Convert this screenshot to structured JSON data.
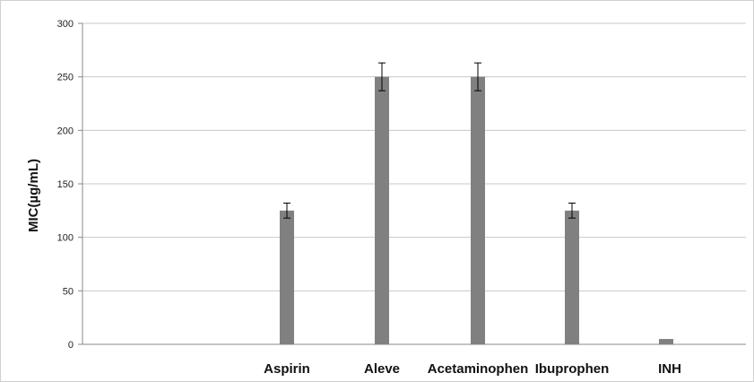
{
  "chart_data": {
    "type": "bar",
    "title": "",
    "xlabel": "",
    "ylabel": "MIC(µg/mL)",
    "ylim": [
      0,
      300
    ],
    "yticks": [
      0,
      50,
      100,
      150,
      200,
      250,
      300
    ],
    "grid": true,
    "categories": [
      "Aspirin",
      "Aleve",
      "Acetaminophen",
      "Ibuprophen",
      "INH"
    ],
    "values": [
      125,
      250,
      250,
      125,
      5
    ],
    "error": [
      7,
      13,
      13,
      7,
      0.5
    ],
    "colors": {
      "bar": "#808080",
      "grid": "#c8c8c8",
      "axis": "#888888"
    }
  }
}
